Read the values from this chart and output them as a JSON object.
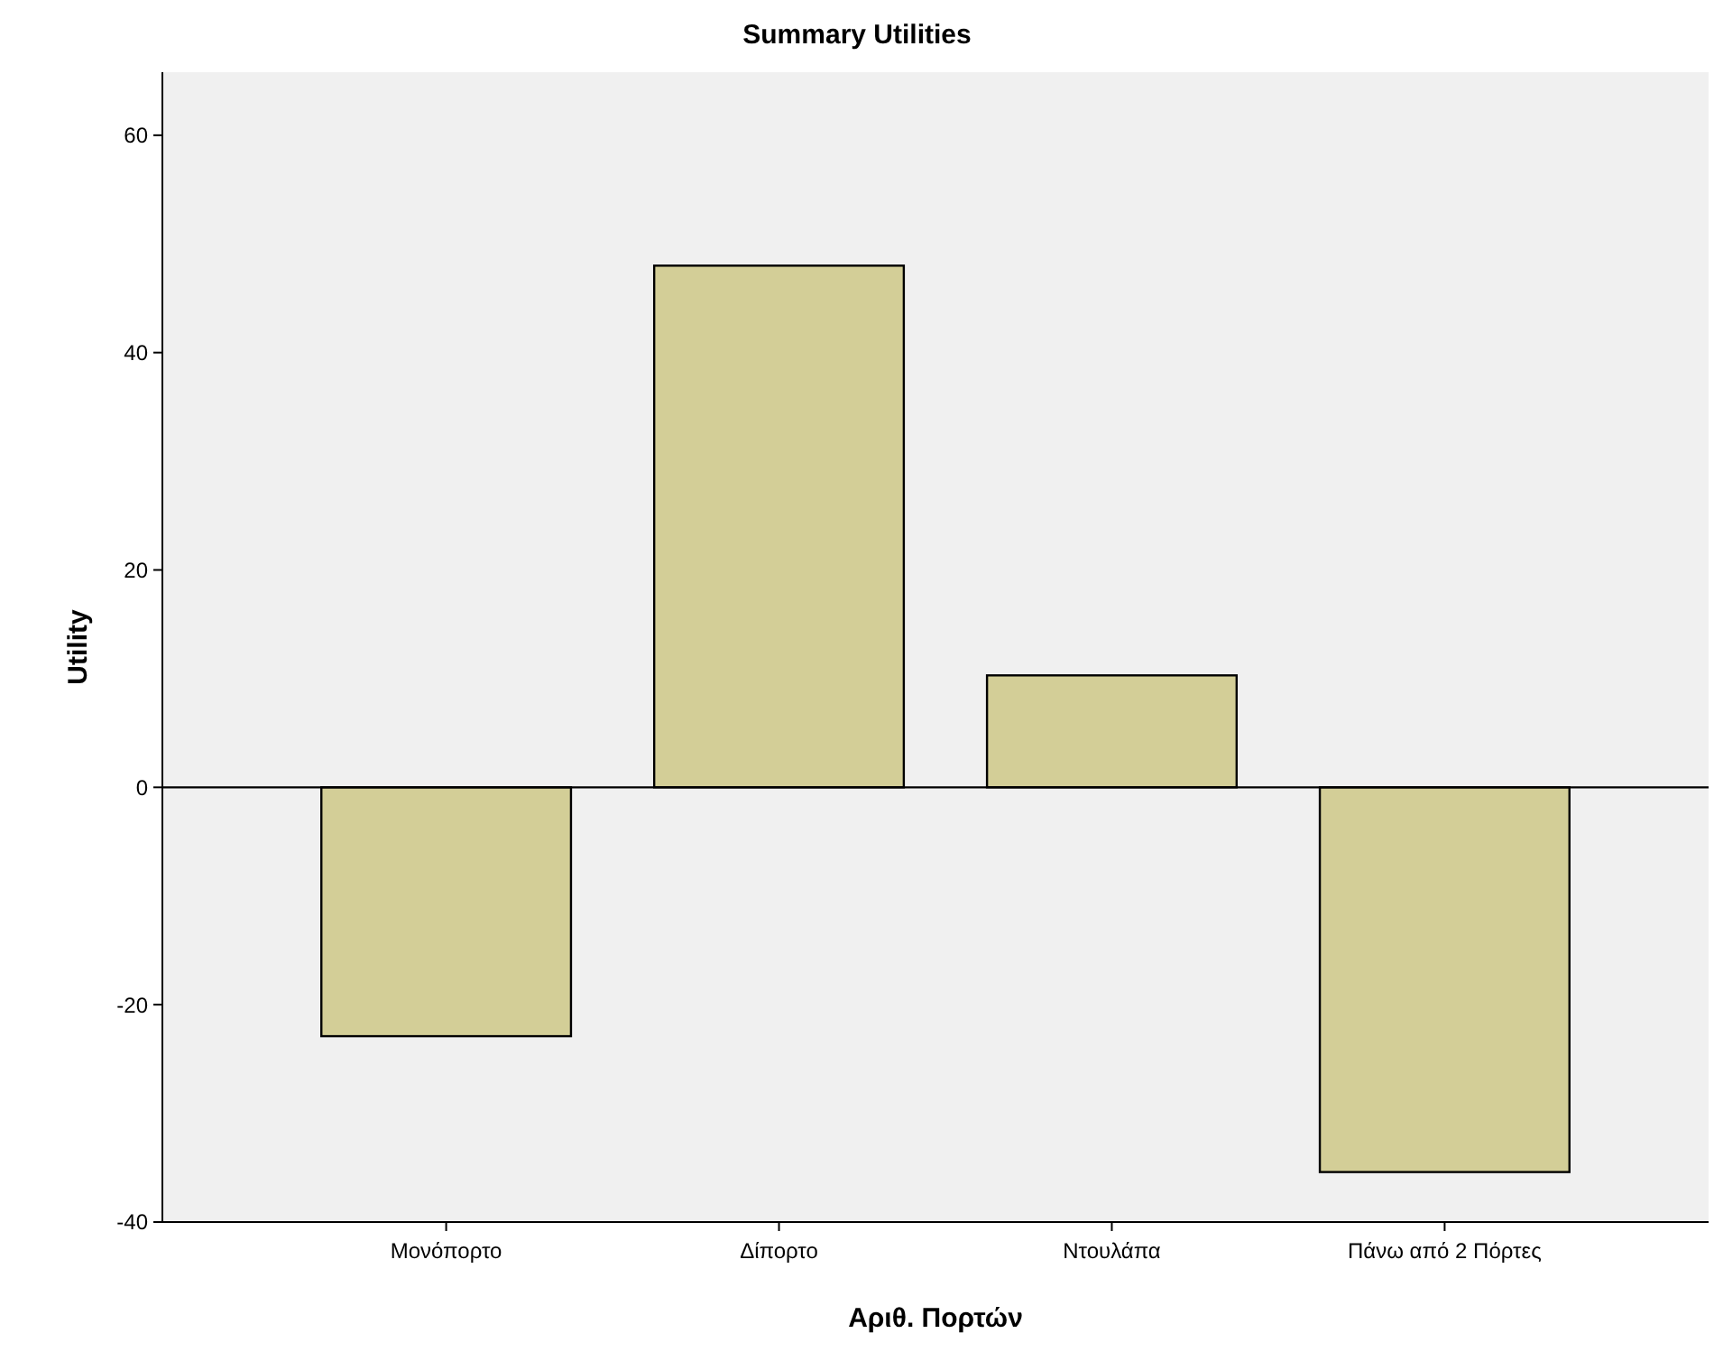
{
  "chart_data": {
    "type": "bar",
    "title": "Summary Utilities",
    "xlabel": "Αριθ. Πορτών",
    "ylabel": "Utility",
    "categories": [
      "Μονόπορτο",
      "Δίπορτο",
      "Ντουλάπα",
      "Πάνω από 2 Πόρτες"
    ],
    "values": [
      -22.9,
      48.0,
      10.3,
      -35.4
    ],
    "color": "#d3ce97",
    "ylim": [
      -40,
      65.8
    ],
    "yticks": [
      -40,
      -20,
      0,
      20,
      40,
      60
    ]
  }
}
